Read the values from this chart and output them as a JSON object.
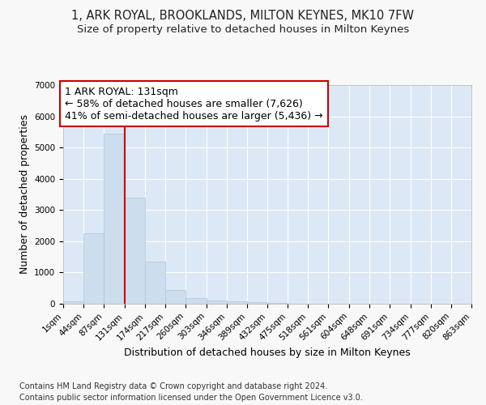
{
  "title": "1, ARK ROYAL, BROOKLANDS, MILTON KEYNES, MK10 7FW",
  "subtitle": "Size of property relative to detached houses in Milton Keynes",
  "xlabel": "Distribution of detached houses by size in Milton Keynes",
  "ylabel": "Number of detached properties",
  "footnote1": "Contains HM Land Registry data © Crown copyright and database right 2024.",
  "footnote2": "Contains public sector information licensed under the Open Government Licence v3.0.",
  "property_size": 131,
  "property_label": "1 ARK ROYAL: 131sqm",
  "annotation_line1": "← 58% of detached houses are smaller (7,626)",
  "annotation_line2": "41% of semi-detached houses are larger (5,436) →",
  "bar_color": "#ccdded",
  "bar_edge_color": "#a8c8e0",
  "vline_color": "#cc0000",
  "annotation_box_edge": "#cc0000",
  "annotation_box_fill": "#ffffff",
  "bin_labels": [
    "1sqm",
    "44sqm",
    "87sqm",
    "131sqm",
    "174sqm",
    "217sqm",
    "260sqm",
    "303sqm",
    "346sqm",
    "389sqm",
    "432sqm",
    "475sqm",
    "518sqm",
    "561sqm",
    "604sqm",
    "648sqm",
    "691sqm",
    "734sqm",
    "777sqm",
    "820sqm",
    "863sqm"
  ],
  "bin_edges": [
    1,
    44,
    87,
    131,
    174,
    217,
    260,
    303,
    346,
    389,
    432,
    475,
    518,
    561,
    604,
    648,
    691,
    734,
    777,
    820,
    863
  ],
  "bar_values": [
    70,
    2250,
    5450,
    3400,
    1350,
    450,
    175,
    100,
    75,
    50,
    20,
    0,
    0,
    0,
    0,
    0,
    0,
    0,
    0,
    0
  ],
  "ylim": [
    0,
    7000
  ],
  "yticks": [
    0,
    1000,
    2000,
    3000,
    4000,
    5000,
    6000,
    7000
  ],
  "fig_bg_color": "#f8f8f8",
  "plot_bg_color": "#dce8f5",
  "grid_color": "#ffffff",
  "title_fontsize": 10.5,
  "subtitle_fontsize": 9.5,
  "axis_label_fontsize": 9,
  "tick_fontsize": 7.5,
  "annotation_fontsize": 9,
  "footnote_fontsize": 7
}
